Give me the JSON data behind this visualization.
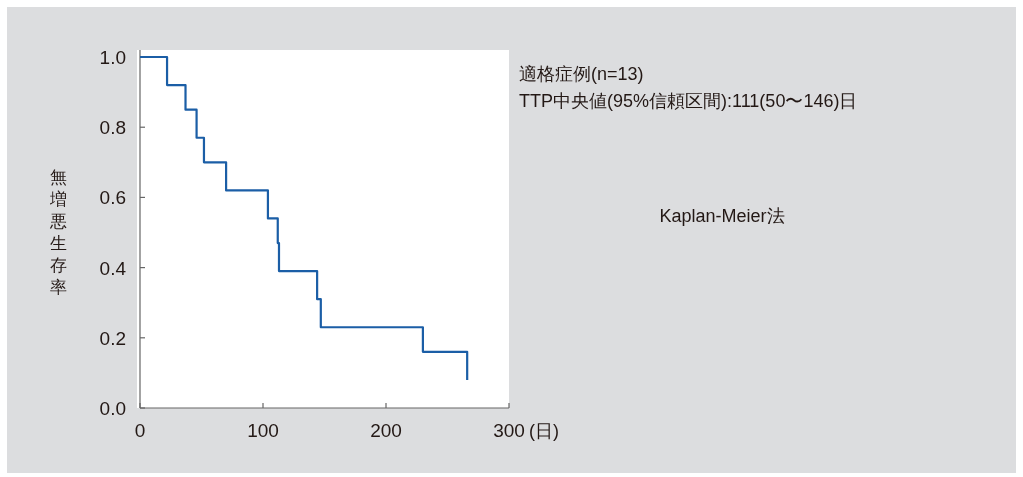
{
  "chart_data": {
    "type": "step",
    "ylabel": "無増悪生存率",
    "xlabel": "(日)",
    "x": [
      0,
      22,
      37,
      46,
      52,
      70,
      104,
      112,
      113,
      144,
      147,
      230,
      266
    ],
    "series": [
      {
        "color": "#1b5ea6",
        "values": [
          1.0,
          0.92,
          0.85,
          0.77,
          0.7,
          0.62,
          0.54,
          0.47,
          0.39,
          0.31,
          0.23,
          0.16,
          0.08
        ]
      }
    ],
    "xlim": [
      0,
      300
    ],
    "xticks": [
      0,
      100,
      200,
      300
    ],
    "ylim": [
      0,
      1.02
    ],
    "yticks": [
      {
        "value": 0,
        "label": "0.0"
      },
      {
        "value": 0.2,
        "label": "0.2"
      },
      {
        "value": 0.4,
        "label": "0.4"
      },
      {
        "value": 0.6,
        "label": "0.6"
      },
      {
        "value": 0.8,
        "label": "0.8"
      },
      {
        "value": 1.0,
        "label": "1.0"
      }
    ],
    "grid": false,
    "annotations": [
      "適格症例(n=13)",
      "TTP中央値(95%信頼区間):111(50〜146)日",
      "Kaplan-Meier法"
    ]
  }
}
